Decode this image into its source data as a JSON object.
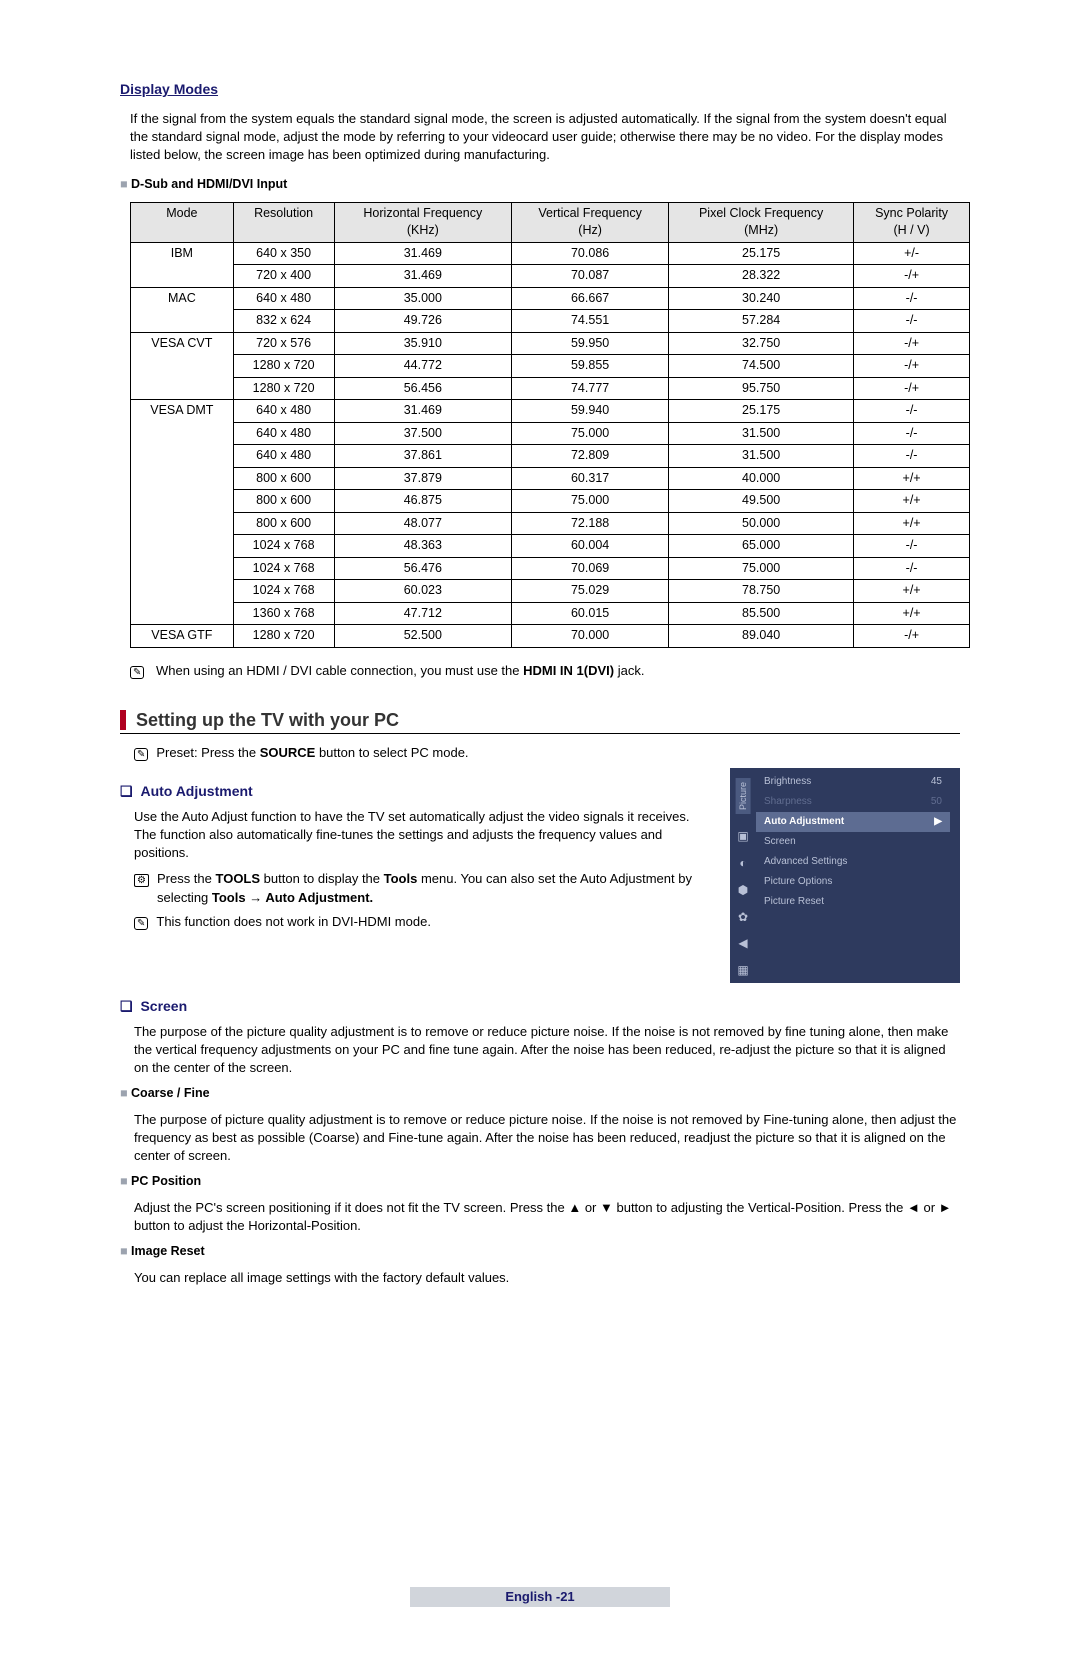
{
  "display_modes": {
    "title": "Display Modes",
    "intro": "If the signal from the system equals the standard signal mode, the screen is adjusted automatically. If the signal from the system doesn't equal the standard signal mode, adjust the mode by referring to your videocard user guide; otherwise there may be no video. For the display modes listed below, the screen image has been optimized during manufacturing.",
    "sub_heading": "D-Sub and HDMI/DVI Input",
    "columns": [
      "Mode",
      "Resolution",
      "Horizontal Frequency\n(KHz)",
      "Vertical Frequency\n(Hz)",
      "Pixel Clock Frequency\n(MHz)",
      "Sync Polarity\n(H / V)"
    ],
    "groups": [
      {
        "mode": "IBM",
        "rows": [
          [
            "640 x 350",
            "31.469",
            "70.086",
            "25.175",
            "+/-"
          ],
          [
            "720 x 400",
            "31.469",
            "70.087",
            "28.322",
            "-/+"
          ]
        ]
      },
      {
        "mode": "MAC",
        "rows": [
          [
            "640 x 480",
            "35.000",
            "66.667",
            "30.240",
            "-/-"
          ],
          [
            "832 x 624",
            "49.726",
            "74.551",
            "57.284",
            "-/-"
          ]
        ]
      },
      {
        "mode": "VESA CVT",
        "rows": [
          [
            "720 x 576",
            "35.910",
            "59.950",
            "32.750",
            "-/+"
          ],
          [
            "1280 x 720",
            "44.772",
            "59.855",
            "74.500",
            "-/+"
          ],
          [
            "1280 x 720",
            "56.456",
            "74.777",
            "95.750",
            "-/+"
          ]
        ]
      },
      {
        "mode": "VESA DMT",
        "rows": [
          [
            "640 x 480",
            "31.469",
            "59.940",
            "25.175",
            "-/-"
          ],
          [
            "640 x 480",
            "37.500",
            "75.000",
            "31.500",
            "-/-"
          ],
          [
            "640 x 480",
            "37.861",
            "72.809",
            "31.500",
            "-/-"
          ],
          [
            "800 x 600",
            "37.879",
            "60.317",
            "40.000",
            "+/+"
          ],
          [
            "800 x 600",
            "46.875",
            "75.000",
            "49.500",
            "+/+"
          ],
          [
            "800 x 600",
            "48.077",
            "72.188",
            "50.000",
            "+/+"
          ],
          [
            "1024 x 768",
            "48.363",
            "60.004",
            "65.000",
            "-/-"
          ],
          [
            "1024 x 768",
            "56.476",
            "70.069",
            "75.000",
            "-/-"
          ],
          [
            "1024 x 768",
            "60.023",
            "75.029",
            "78.750",
            "+/+"
          ],
          [
            "1360 x 768",
            "47.712",
            "60.015",
            "85.500",
            "+/+"
          ]
        ]
      },
      {
        "mode": "VESA GTF",
        "rows": [
          [
            "1280 x 720",
            "52.500",
            "70.000",
            "89.040",
            "-/+"
          ]
        ]
      }
    ],
    "note_prefix": "When using an HDMI / DVI cable connection, you must use the ",
    "note_bold": "HDMI IN 1(DVI)",
    "note_suffix": " jack."
  },
  "setup": {
    "heading": "Setting up the TV with your PC",
    "preset_prefix": "Preset: Press the ",
    "preset_bold": "SOURCE",
    "preset_suffix": " button to select PC mode.",
    "auto": {
      "title": "Auto Adjustment",
      "text": "Use the Auto Adjust function to have the TV set automatically adjust the video signals it receives. The function also automatically fine-tunes the settings and adjusts the frequency values and positions.",
      "tool_a": "Press the ",
      "tool_b": "TOOLS",
      "tool_c": " button to display the ",
      "tool_d": "Tools",
      "tool_e": " menu. You can also set the Auto Adjustment by selecting ",
      "tool_f": "Tools → Auto Adjustment.",
      "note2": "This function does not work in DVI-HDMI mode."
    },
    "panel": {
      "side_label": "Picture",
      "brightness_label": "Brightness",
      "brightness_value": "45",
      "sharpness_label": "Sharpness",
      "sharpness_value": "50",
      "selected": "Auto Adjustment",
      "arrow": "▶",
      "items": [
        "Screen",
        "Advanced Settings",
        "Picture Options",
        "Picture Reset"
      ]
    },
    "screen": {
      "title": "Screen",
      "intro": "The purpose of the picture quality adjustment is to remove or reduce picture noise. If the noise is not removed by fine tuning alone, then make the vertical frequency adjustments on your PC and fine tune again. After the noise has been reduced, re-adjust the picture so that it is aligned on the center of the screen.",
      "coarse_title": "Coarse / Fine",
      "coarse_text": "The purpose of picture quality adjustment is to remove or reduce picture noise. If the noise is not removed by Fine-tuning alone, then adjust the frequency as best as possible (Coarse) and Fine-tune again. After the noise has been reduced, readjust the picture so that it is aligned on the center of screen.",
      "pc_title": "PC Position",
      "pc_text": "Adjust the PC's screen positioning if it does not fit the TV screen. Press the ▲ or ▼ button to adjusting the Vertical-Position. Press the ◄ or ► button to adjust the Horizontal-Position.",
      "img_title": "Image Reset",
      "img_text": "You can replace all image settings with the factory default values."
    }
  },
  "footer": {
    "lang": "English - ",
    "page": "21"
  },
  "colors": {
    "title_color": "#1a1a6e",
    "marker_red": "#b00020",
    "table_header_bg": "#e5e5e5",
    "panel_bg": "#2e3a5e",
    "panel_sel_bg": "#5d6c92",
    "footer_bg": "#d1d5db"
  }
}
